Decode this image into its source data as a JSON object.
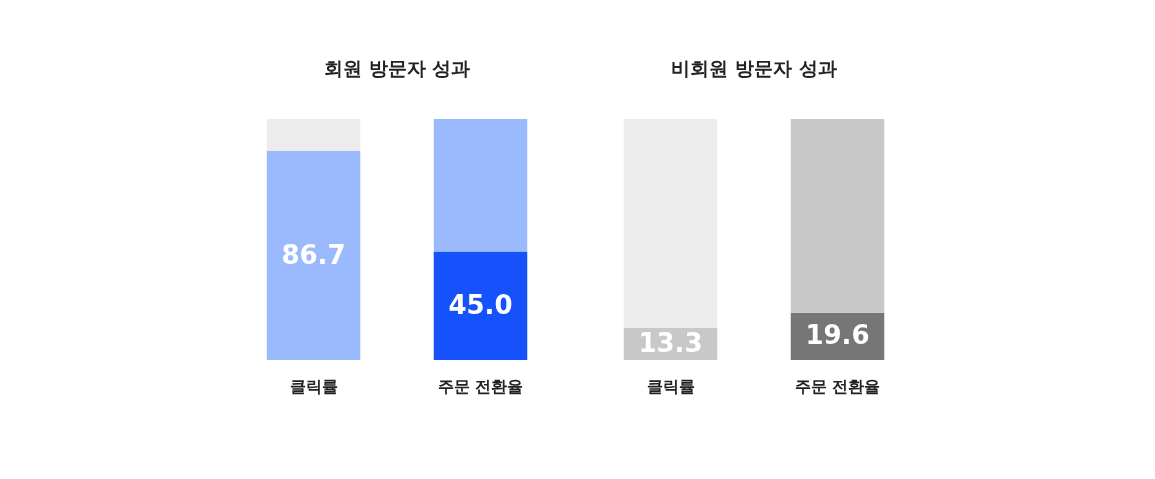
{
  "chart_data": [
    {
      "type": "bar",
      "title": "회원 방문자 성과",
      "categories": [
        "클릭률",
        "주문 전환율"
      ],
      "stacked": true,
      "ylim": [
        0,
        100
      ],
      "tick_labels": "x",
      "grid": false,
      "series": [
        {
          "colors": [
            "#9bb9fd",
            "#1552fb"
          ],
          "values": [
            86.7,
            45.0
          ],
          "value_labels": [
            "86.7",
            "45.0"
          ]
        },
        {
          "colors": [
            "#ececec",
            "#9bb9fd"
          ],
          "values": [
            13.3,
            55.0
          ]
        }
      ]
    },
    {
      "type": "bar",
      "title": "비회원 방문자 성과",
      "categories": [
        "클릭률",
        "주문 전환율"
      ],
      "stacked": true,
      "ylim": [
        0,
        100
      ],
      "tick_labels": "x",
      "grid": false,
      "series": [
        {
          "colors": [
            "#c8c8c8",
            "#767676"
          ],
          "values": [
            13.3,
            19.6
          ],
          "value_labels": [
            "13.3",
            "19.6"
          ]
        },
        {
          "colors": [
            "#ececec",
            "#c8c8c8"
          ],
          "values": [
            86.7,
            80.4
          ]
        }
      ]
    }
  ]
}
